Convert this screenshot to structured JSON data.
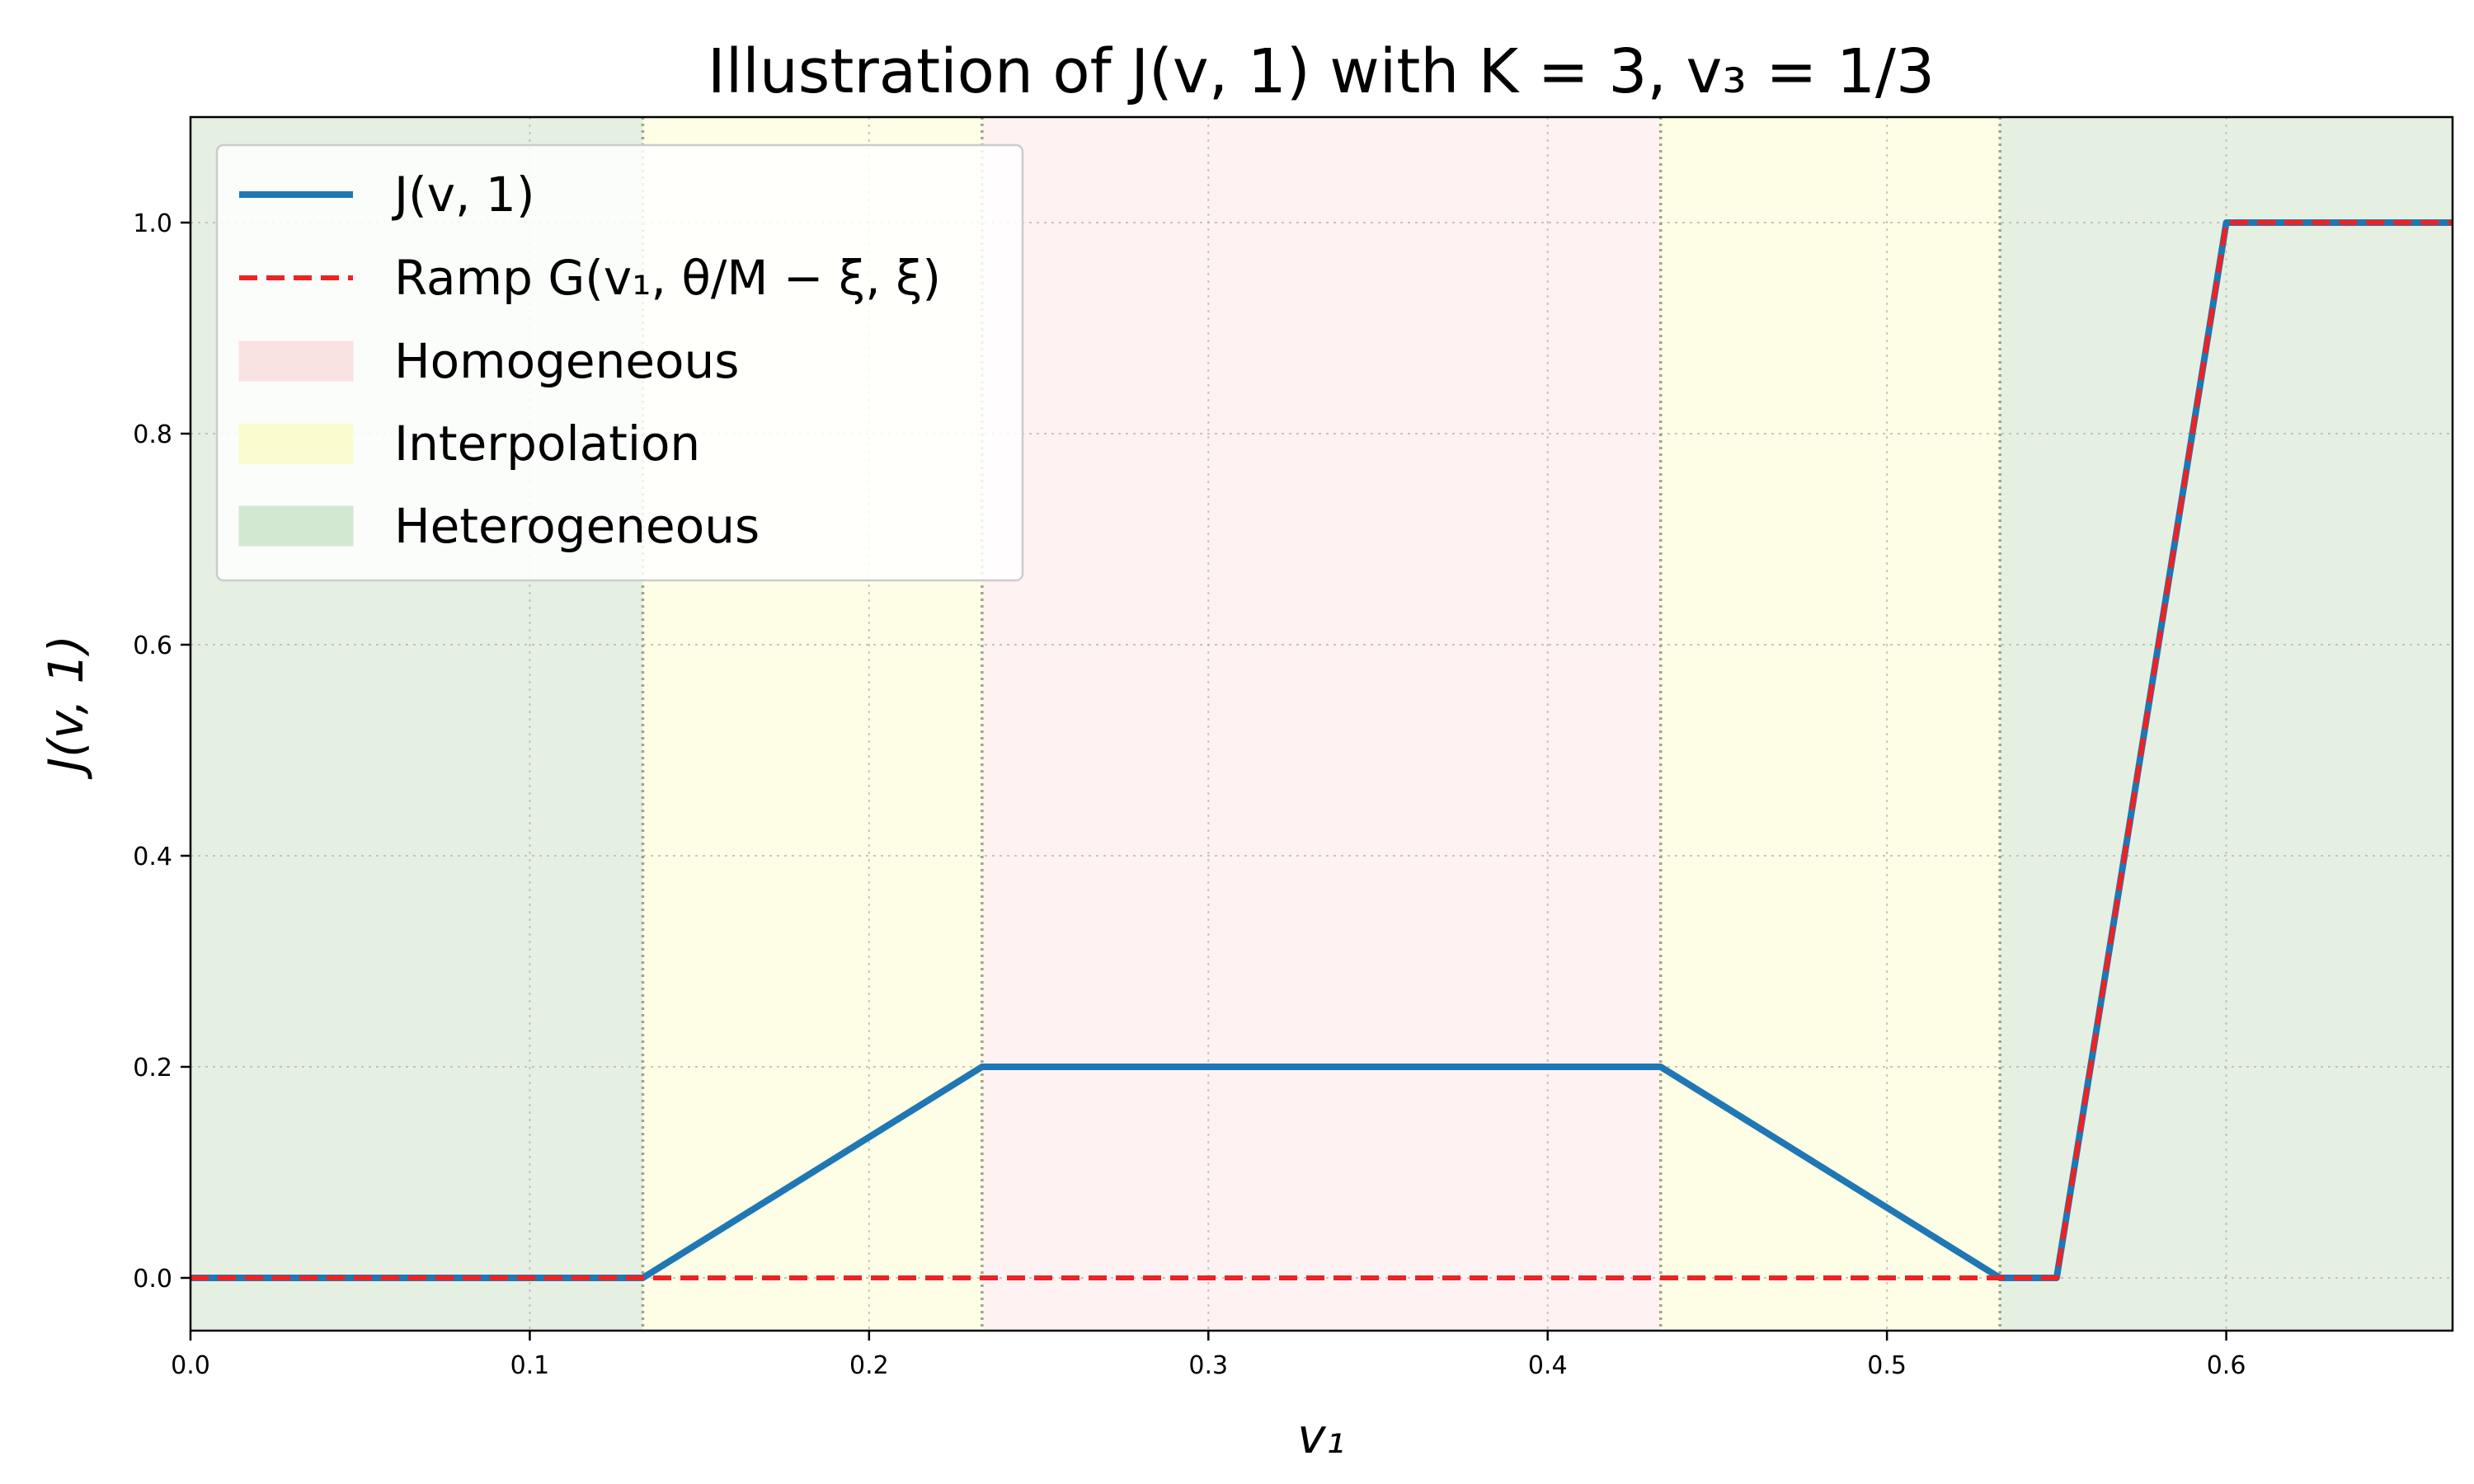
{
  "chart_data": {
    "type": "line",
    "title": "Illustration of J(v, 1) with K = 3, v₃ = 1/3",
    "xlabel": "v₁",
    "ylabel": "J(v, 1)",
    "xlim": [
      0,
      0.6667
    ],
    "ylim": [
      -0.05,
      1.1
    ],
    "xticks": [
      0.0,
      0.1,
      0.2,
      0.3,
      0.4,
      0.5,
      0.6
    ],
    "xtick_labels": [
      "0.0",
      "0.1",
      "0.2",
      "0.3",
      "0.4",
      "0.5",
      "0.6"
    ],
    "yticks": [
      0.0,
      0.2,
      0.4,
      0.6,
      0.8,
      1.0
    ],
    "ytick_labels": [
      "0.0",
      "0.2",
      "0.4",
      "0.6",
      "0.8",
      "1.0"
    ],
    "grid": true,
    "legend_position": "top-left",
    "series": [
      {
        "name": "J(v, 1)",
        "color": "#1f77b4",
        "style": "solid",
        "x": [
          0.0,
          0.1333,
          0.2333,
          0.4333,
          0.5333,
          0.55,
          0.6,
          0.6667
        ],
        "y": [
          0.0,
          0.0,
          0.2,
          0.2,
          0.0,
          0.0,
          1.0,
          1.0
        ]
      },
      {
        "name": "Ramp G(v₁, θ/M − ξ, ξ)",
        "color": "#ee2222",
        "style": "dashed",
        "x": [
          0.0,
          0.55,
          0.6,
          0.6667
        ],
        "y": [
          0.0,
          0.0,
          1.0,
          1.0
        ]
      }
    ],
    "regions": [
      {
        "label": "Heterogeneous",
        "from": 0.0,
        "to": 0.1333,
        "color": "#e5f0e3",
        "legend_color": "#d2e8d0"
      },
      {
        "label": "Interpolation",
        "from": 0.1333,
        "to": 0.2333,
        "color": "#fefee6",
        "legend_color": "#fbfbd0"
      },
      {
        "label": "Homogeneous",
        "from": 0.2333,
        "to": 0.4333,
        "color": "#fef2f2",
        "legend_color": "#f9e2e2"
      },
      {
        "label": "Interpolation",
        "from": 0.4333,
        "to": 0.5333,
        "color": "#fefee6",
        "legend_color": "#fbfbd0"
      },
      {
        "label": "Heterogeneous",
        "from": 0.5333,
        "to": 0.6667,
        "color": "#e5f0e3",
        "legend_color": "#d2e8d0"
      }
    ],
    "boundaries": [
      0.1333,
      0.2333,
      0.4333,
      0.5333
    ],
    "legend": [
      {
        "label": "J(v, 1)",
        "kind": "line",
        "color": "#1f77b4",
        "style": "solid"
      },
      {
        "label": "Ramp G(v₁, θ/M − ξ, ξ)",
        "kind": "line",
        "color": "#ee2222",
        "style": "dashed"
      },
      {
        "label": "Homogeneous",
        "kind": "patch",
        "color": "#f9e2e2"
      },
      {
        "label": "Interpolation",
        "kind": "patch",
        "color": "#fbfbd0"
      },
      {
        "label": "Heterogeneous",
        "kind": "patch",
        "color": "#d2e8d0"
      }
    ]
  }
}
